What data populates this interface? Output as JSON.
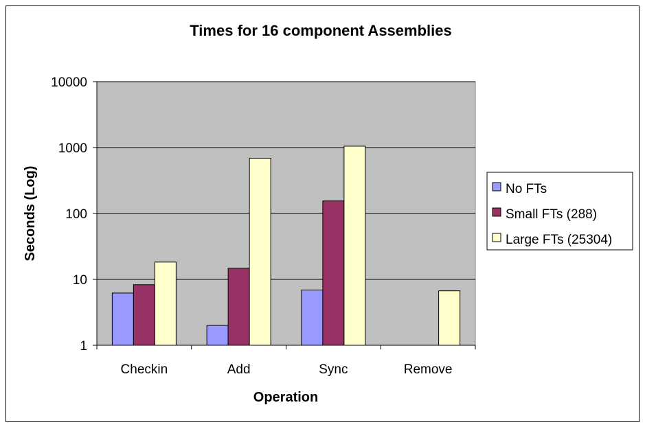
{
  "chart_data": {
    "type": "bar",
    "title": "Times for 16 component Assemblies",
    "xlabel": "Operation",
    "ylabel": "Seconds (Log)",
    "yscale": "log",
    "ylim": [
      1,
      10000
    ],
    "yticks": [
      1,
      10,
      100,
      1000,
      10000
    ],
    "ytick_labels": [
      "1",
      "10",
      "100",
      "1000",
      "10000"
    ],
    "categories": [
      "Checkin",
      "Add",
      "Sync",
      "Remove"
    ],
    "series": [
      {
        "name": "No FTs",
        "color": "#9999ff",
        "values": [
          6.2,
          2.0,
          6.9,
          null
        ]
      },
      {
        "name": "Small FTs (288)",
        "color": "#993366",
        "values": [
          8.3,
          14.8,
          155,
          null
        ]
      },
      {
        "name": "Large FTs (25304)",
        "color": "#ffffcc",
        "values": [
          18.3,
          690,
          1050,
          6.7
        ]
      }
    ],
    "grid": true,
    "plot_background": "#c0c0c0",
    "legend_position": "right"
  }
}
